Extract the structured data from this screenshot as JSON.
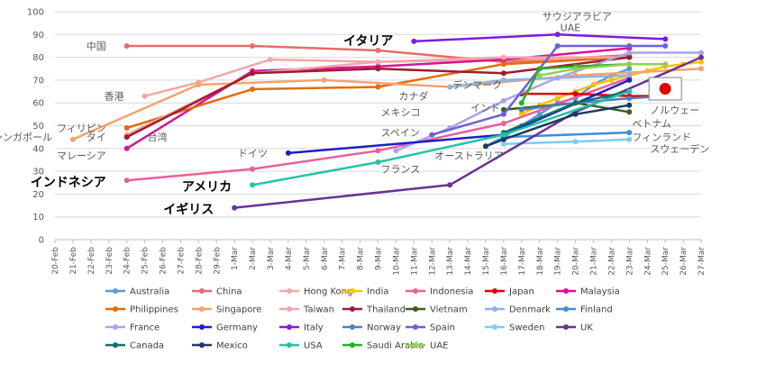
{
  "chart_data": {
    "type": "line",
    "ylim": [
      0,
      100
    ],
    "yticks": [
      0,
      10,
      20,
      30,
      40,
      50,
      60,
      70,
      80,
      90,
      100
    ],
    "grid": "horizontal",
    "legend_placement": "bottom",
    "categories": [
      "20-Feb",
      "21-Feb",
      "22-Feb",
      "23-Feb",
      "24-Feb",
      "25-Feb",
      "26-Feb",
      "27-Feb",
      "28-Feb",
      "29-Feb",
      "1-Mar",
      "2-Mar",
      "3-Mar",
      "4-Mar",
      "5-Mar",
      "6-Mar",
      "7-Mar",
      "8-Mar",
      "9-Mar",
      "10-Mar",
      "11-Mar",
      "12-Mar",
      "13-Mar",
      "14-Mar",
      "15-Mar",
      "16-Mar",
      "17-Mar",
      "18-Mar",
      "19-Mar",
      "20-Mar",
      "21-Mar",
      "22-Mar",
      "23-Mar",
      "24-Mar",
      "25-Mar",
      "26-Mar",
      "27-Mar"
    ],
    "series": [
      {
        "name": "Australia",
        "color": "#5B9BD5",
        "points": [
          [
            "15-Mar",
            41
          ],
          [
            "16-Mar",
            45
          ],
          [
            "17-Mar",
            50
          ],
          [
            "18-Mar",
            55
          ],
          [
            "19-Mar",
            60
          ],
          [
            "20-Mar",
            62
          ],
          [
            "21-Mar",
            68
          ],
          [
            "22-Mar",
            72
          ],
          [
            "23-Mar",
            75
          ]
        ]
      },
      {
        "name": "China",
        "color": "#E66C6C",
        "points": [
          [
            "24-Feb",
            85
          ],
          [
            "2-Mar",
            85
          ],
          [
            "9-Mar",
            83
          ],
          [
            "16-Mar",
            78
          ],
          [
            "23-Mar",
            81
          ]
        ]
      },
      {
        "name": "Hong Kong",
        "color": "#F4A6A6",
        "points": [
          [
            "25-Feb",
            63
          ],
          [
            "28-Feb",
            69
          ],
          [
            "3-Mar",
            79
          ],
          [
            "9-Mar",
            78
          ],
          [
            "16-Mar",
            79
          ],
          [
            "23-Mar",
            80
          ]
        ]
      },
      {
        "name": "India",
        "color": "#FFC000",
        "points": [
          [
            "17-Mar",
            55
          ],
          [
            "18-Mar",
            59
          ],
          [
            "19-Mar",
            62
          ],
          [
            "20-Mar",
            65
          ],
          [
            "21-Mar",
            68
          ],
          [
            "22-Mar",
            70
          ],
          [
            "23-Mar",
            72
          ],
          [
            "24-Mar",
            74
          ],
          [
            "25-Mar",
            76
          ],
          [
            "26-Mar",
            77
          ],
          [
            "27-Mar",
            78
          ]
        ]
      },
      {
        "name": "Indonesia",
        "color": "#E8609A",
        "points": [
          [
            "24-Feb",
            26
          ],
          [
            "2-Mar",
            31
          ],
          [
            "9-Mar",
            39
          ],
          [
            "16-Mar",
            51
          ],
          [
            "23-Mar",
            71
          ]
        ]
      },
      {
        "name": "Japan",
        "color": "#E00000",
        "points": [
          [
            "17-Mar",
            64
          ],
          [
            "20-Mar",
            64
          ],
          [
            "23-Mar",
            63
          ],
          [
            "25-Mar",
            63
          ]
        ]
      },
      {
        "name": "Malaysia",
        "color": "#D6149B",
        "points": [
          [
            "24-Feb",
            40
          ],
          [
            "2-Mar",
            74
          ],
          [
            "9-Mar",
            76
          ],
          [
            "16-Mar",
            79
          ],
          [
            "23-Mar",
            84
          ]
        ]
      },
      {
        "name": "Philippines",
        "color": "#E46C0A",
        "points": [
          [
            "24-Feb",
            49
          ],
          [
            "2-Mar",
            66
          ],
          [
            "9-Mar",
            67
          ],
          [
            "16-Mar",
            77
          ],
          [
            "23-Mar",
            80
          ]
        ]
      },
      {
        "name": "Singapore",
        "color": "#F4A26E",
        "points": [
          [
            "21-Feb",
            44
          ],
          [
            "28-Feb",
            68
          ],
          [
            "6-Mar",
            70
          ],
          [
            "13-Mar",
            67
          ],
          [
            "20-Mar",
            72
          ],
          [
            "27-Mar",
            75
          ]
        ]
      },
      {
        "name": "Taiwan",
        "color": "#F0A8A8",
        "points": [
          [
            "24-Feb",
            46
          ],
          [
            "2-Mar",
            73
          ],
          [
            "9-Mar",
            78
          ],
          [
            "16-Mar",
            80
          ],
          [
            "23-Mar",
            80
          ]
        ]
      },
      {
        "name": "Thailand",
        "color": "#9E1C2E",
        "points": [
          [
            "24-Feb",
            45
          ],
          [
            "2-Mar",
            73
          ],
          [
            "9-Mar",
            75
          ],
          [
            "16-Mar",
            73
          ],
          [
            "23-Mar",
            80
          ]
        ]
      },
      {
        "name": "Vietnam",
        "color": "#3A5F1E",
        "points": [
          [
            "16-Mar",
            57
          ],
          [
            "20-Mar",
            60
          ],
          [
            "23-Mar",
            56
          ]
        ]
      },
      {
        "name": "Denmark",
        "color": "#8FB4DE",
        "points": [
          [
            "13-Mar",
            67
          ],
          [
            "16-Mar",
            70
          ],
          [
            "19-Mar",
            71
          ],
          [
            "23-Mar",
            72
          ]
        ]
      },
      {
        "name": "Finland",
        "color": "#3F8ED8",
        "points": [
          [
            "16-Mar",
            45
          ],
          [
            "23-Mar",
            47
          ]
        ]
      },
      {
        "name": "France",
        "color": "#A9A3E8",
        "points": [
          [
            "10-Mar",
            39
          ],
          [
            "13-Mar",
            49
          ],
          [
            "16-Mar",
            61
          ],
          [
            "19-Mar",
            71
          ],
          [
            "23-Mar",
            82
          ],
          [
            "27-Mar",
            82
          ]
        ]
      },
      {
        "name": "Germany",
        "color": "#1F1FBF",
        "points": [
          [
            "4-Mar",
            38
          ],
          [
            "16-Mar",
            46
          ],
          [
            "23-Mar",
            70
          ]
        ]
      },
      {
        "name": "Italy",
        "color": "#7B1CE0",
        "points": [
          [
            "11-Mar",
            87
          ],
          [
            "19-Mar",
            90
          ],
          [
            "25-Mar",
            88
          ]
        ]
      },
      {
        "name": "Norway",
        "color": "#4F80B8",
        "points": [
          [
            "17-Mar",
            57
          ],
          [
            "20-Mar",
            60
          ],
          [
            "23-Mar",
            62
          ],
          [
            "25-Mar",
            63
          ]
        ]
      },
      {
        "name": "Spain",
        "color": "#6A62D8",
        "points": [
          [
            "12-Mar",
            46
          ],
          [
            "16-Mar",
            55
          ],
          [
            "19-Mar",
            85
          ],
          [
            "23-Mar",
            85
          ],
          [
            "25-Mar",
            85
          ]
        ]
      },
      {
        "name": "Sweden",
        "color": "#7ECDF2",
        "points": [
          [
            "16-Mar",
            42
          ],
          [
            "20-Mar",
            43
          ],
          [
            "23-Mar",
            44
          ]
        ]
      },
      {
        "name": "UK",
        "color": "#6A3394",
        "points": [
          [
            "1-Mar",
            14
          ],
          [
            "13-Mar",
            24
          ],
          [
            "20-Mar",
            56
          ],
          [
            "27-Mar",
            80
          ]
        ]
      },
      {
        "name": "Canada",
        "color": "#107070",
        "points": [
          [
            "16-Mar",
            47
          ],
          [
            "20-Mar",
            60
          ],
          [
            "23-Mar",
            65
          ]
        ]
      },
      {
        "name": "Mexico",
        "color": "#1F3864",
        "points": [
          [
            "15-Mar",
            41
          ],
          [
            "16-Mar",
            44
          ],
          [
            "20-Mar",
            55
          ],
          [
            "23-Mar",
            59
          ]
        ]
      },
      {
        "name": "USA",
        "color": "#23C4A6",
        "points": [
          [
            "2-Mar",
            24
          ],
          [
            "9-Mar",
            34
          ],
          [
            "16-Mar",
            46
          ],
          [
            "23-Mar",
            65
          ]
        ]
      },
      {
        "name": "Saudi Arabia",
        "color": "#22B022",
        "points": [
          [
            "17-Mar",
            60
          ],
          [
            "18-Mar",
            75
          ],
          [
            "20-Mar",
            76
          ],
          [
            "23-Mar",
            77
          ]
        ]
      },
      {
        "name": "UAE",
        "color": "#92D050",
        "points": [
          [
            "18-Mar",
            72
          ],
          [
            "20-Mar",
            75
          ],
          [
            "23-Mar",
            77
          ],
          [
            "25-Mar",
            77
          ]
        ]
      }
    ],
    "annotations": [
      {
        "text": "中国",
        "at": [
          "23-Feb",
          85
        ],
        "align": "end",
        "color": "#595959"
      },
      {
        "text": "香港",
        "at": [
          "24-Feb",
          63
        ],
        "align": "end",
        "color": "#595959"
      },
      {
        "text": "フィリピン",
        "at": [
          "23-Feb",
          49
        ],
        "align": "end",
        "color": "#595959"
      },
      {
        "text": "シンガポール",
        "at": [
          "20-Feb",
          45
        ],
        "align": "end",
        "color": "#595959"
      },
      {
        "text": "タイ",
        "at": [
          "23-Feb",
          45
        ],
        "align": "end",
        "color": "#595959"
      },
      {
        "text": "台湾",
        "at": [
          "25-Feb",
          45
        ],
        "align": "start",
        "color": "#595959"
      },
      {
        "text": "マレーシア",
        "at": [
          "23-Feb",
          37
        ],
        "align": "end",
        "color": "#595959"
      },
      {
        "text": "インドネシア",
        "at": [
          "23-Feb",
          25
        ],
        "align": "end",
        "color": "#000000",
        "big": true
      },
      {
        "text": "アメリカ",
        "at": [
          "1-Mar",
          23
        ],
        "align": "end",
        "color": "#000000",
        "big": true
      },
      {
        "text": "イギリス",
        "at": [
          "29-Feb",
          13
        ],
        "align": "end",
        "color": "#000000",
        "big": true
      },
      {
        "text": "ドイツ",
        "at": [
          "3-Mar",
          38
        ],
        "align": "end",
        "color": "#595959"
      },
      {
        "text": "フランス",
        "at": [
          "9-Mar",
          31
        ],
        "align": "start",
        "color": "#595959"
      },
      {
        "text": "スペイン",
        "at": [
          "9-Mar",
          47
        ],
        "align": "start",
        "color": "#595959"
      },
      {
        "text": "メキシコ",
        "at": [
          "9-Mar",
          56
        ],
        "align": "start",
        "color": "#595959"
      },
      {
        "text": "カナダ",
        "at": [
          "10-Mar",
          63
        ],
        "align": "start",
        "color": "#595959"
      },
      {
        "text": "オーストラリア",
        "at": [
          "12-Mar",
          37
        ],
        "align": "start",
        "color": "#595959"
      },
      {
        "text": "デンマーク",
        "at": [
          "13-Mar",
          68
        ],
        "align": "start",
        "color": "#595959"
      },
      {
        "text": "インド",
        "at": [
          "14-Mar",
          58
        ],
        "align": "start",
        "color": "#595959"
      },
      {
        "text": "イタリア",
        "at": [
          "10-Mar",
          87
        ],
        "align": "end",
        "color": "#000000",
        "big": true
      },
      {
        "text": "サウジアラビア",
        "at": [
          "18-Mar",
          98
        ],
        "align": "start",
        "color": "#595959"
      },
      {
        "text": "UAE",
        "at": [
          "19-Mar",
          93
        ],
        "align": "start",
        "color": "#595959"
      },
      {
        "text": "ノルウェー",
        "at": [
          "24-Mar",
          57
        ],
        "align": "start",
        "color": "#595959"
      },
      {
        "text": "ベトナム",
        "at": [
          "23-Mar",
          51
        ],
        "align": "start",
        "color": "#595959"
      },
      {
        "text": "フィンランド",
        "at": [
          "23-Mar",
          45
        ],
        "align": "start",
        "color": "#595959"
      },
      {
        "text": "スウェーデン",
        "at": [
          "24-Mar",
          40
        ],
        "align": "start",
        "color": "#595959"
      }
    ],
    "flag_marker": {
      "name": "japan-flag",
      "at": [
        "25-Mar",
        66
      ]
    }
  }
}
